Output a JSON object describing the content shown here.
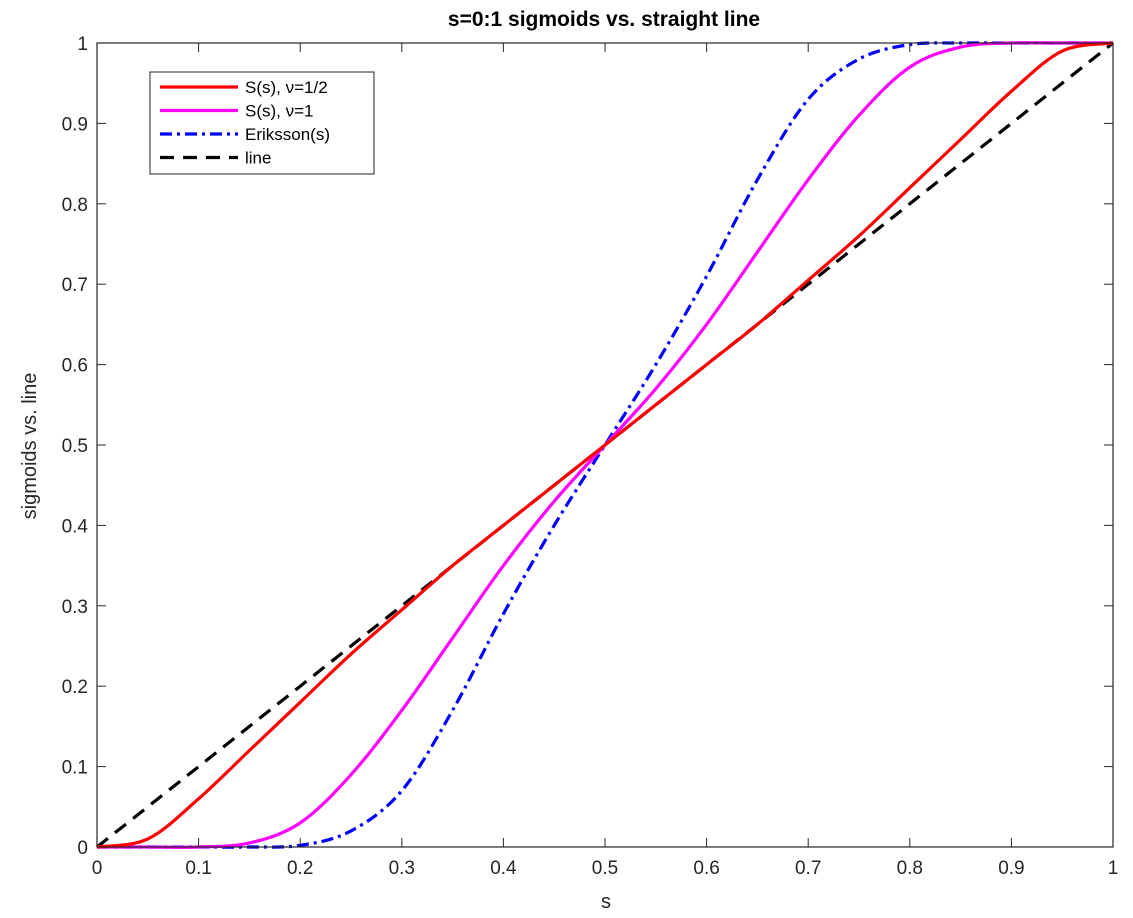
{
  "chart_data": {
    "type": "line",
    "title": "s=0:1 sigmoids vs. straight line",
    "xlabel": "s",
    "ylabel": "sigmoids vs. line",
    "xlim": [
      0,
      1
    ],
    "ylim": [
      0,
      1
    ],
    "xticks": [
      "0",
      "0.1",
      "0.2",
      "0.3",
      "0.4",
      "0.5",
      "0.6",
      "0.7",
      "0.8",
      "0.9",
      "1"
    ],
    "yticks": [
      "0",
      "0.1",
      "0.2",
      "0.3",
      "0.4",
      "0.5",
      "0.6",
      "0.7",
      "0.8",
      "0.9",
      "1"
    ],
    "grid": false,
    "legend_position": "top-left",
    "x": [
      0,
      0.05,
      0.1,
      0.15,
      0.2,
      0.25,
      0.3,
      0.35,
      0.4,
      0.45,
      0.5,
      0.55,
      0.6,
      0.65,
      0.7,
      0.75,
      0.8,
      0.85,
      0.9,
      0.95,
      1
    ],
    "series": [
      {
        "name": "S(s), ν=1/2",
        "color": "#ff0000",
        "style": "solid",
        "values": [
          0,
          0.01,
          0.06,
          0.12,
          0.18,
          0.24,
          0.295,
          0.35,
          0.4,
          0.45,
          0.5,
          0.55,
          0.6,
          0.65,
          0.705,
          0.76,
          0.82,
          0.88,
          0.94,
          0.99,
          1
        ]
      },
      {
        "name": "S(s), ν=1",
        "color": "#ff00ff",
        "style": "solid",
        "values": [
          0,
          0.0,
          0.0,
          0.005,
          0.03,
          0.09,
          0.17,
          0.26,
          0.35,
          0.43,
          0.5,
          0.57,
          0.65,
          0.74,
          0.83,
          0.91,
          0.97,
          0.995,
          1.0,
          1.0,
          1
        ]
      },
      {
        "name": "Eriksson(s)",
        "color": "#0000ff",
        "style": "dashdot",
        "values": [
          0,
          0.0,
          0.0,
          0.0,
          0.002,
          0.02,
          0.07,
          0.17,
          0.29,
          0.4,
          0.5,
          0.6,
          0.71,
          0.83,
          0.93,
          0.98,
          0.998,
          1.0,
          1.0,
          1.0,
          1
        ]
      },
      {
        "name": "line",
        "color": "#000000",
        "style": "dashed",
        "values": [
          0,
          0.05,
          0.1,
          0.15,
          0.2,
          0.25,
          0.3,
          0.35,
          0.4,
          0.45,
          0.5,
          0.55,
          0.6,
          0.65,
          0.7,
          0.75,
          0.8,
          0.85,
          0.9,
          0.95,
          1
        ]
      }
    ]
  }
}
